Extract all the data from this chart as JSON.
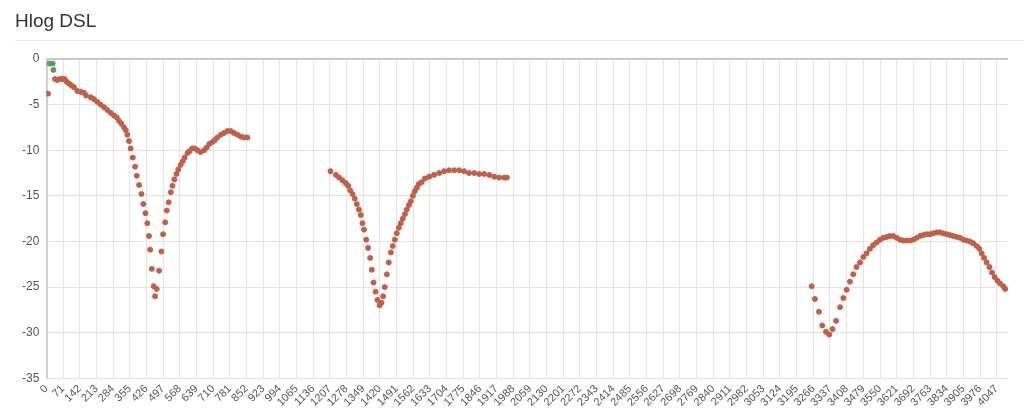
{
  "chart_data": {
    "type": "scatter",
    "title": "Hlog DSL",
    "marker": "circle",
    "grid": true,
    "xlim": [
      0,
      4095
    ],
    "xticks": [
      0,
      71,
      142,
      213,
      284,
      355,
      426,
      497,
      568,
      639,
      710,
      781,
      852,
      923,
      994,
      1065,
      1136,
      1207,
      1278,
      1349,
      1420,
      1491,
      1562,
      1633,
      1704,
      1775,
      1846,
      1917,
      1988,
      2059,
      2130,
      2201,
      2272,
      2343,
      2414,
      2485,
      2556,
      2627,
      2698,
      2769,
      2840,
      2911,
      2982,
      3053,
      3124,
      3195,
      3266,
      3337,
      3408,
      3479,
      3550,
      3621,
      3692,
      3763,
      3834,
      3905,
      3976,
      4047
    ],
    "ylim": [
      -35,
      0
    ],
    "yticks": [
      0,
      -5,
      -10,
      -15,
      -20,
      -25,
      -30,
      -35
    ],
    "series": [
      {
        "color": "#5c9a68",
        "x": [
          14,
          27,
          30
        ],
        "values": [
          -0.5,
          -0.5,
          -1.2
        ]
      },
      {
        "color": "#c0604a",
        "x": [
          7,
          37,
          47,
          58,
          68,
          78,
          87,
          97,
          107,
          118,
          132,
          146,
          160,
          169,
          189,
          203,
          217,
          231,
          246,
          260,
          274,
          288,
          300,
          310,
          320,
          331,
          338,
          345,
          352,
          359,
          368,
          378,
          385,
          395,
          405,
          413,
          422,
          430,
          437,
          442,
          449,
          457,
          463,
          470,
          480,
          490,
          497,
          506,
          513,
          521,
          530,
          537,
          545,
          554,
          562,
          572,
          581,
          589,
          601,
          609,
          621,
          632,
          643,
          657,
          672,
          683,
          694,
          707,
          717,
          728,
          743,
          757,
          771,
          785,
          799,
          814,
          828,
          842,
          856,
          1210,
          1233,
          1247,
          1261,
          1275,
          1285,
          1294,
          1304,
          1313,
          1322,
          1331,
          1339,
          1346,
          1353,
          1362,
          1370,
          1379,
          1386,
          1393,
          1402,
          1410,
          1419,
          1427,
          1434,
          1441,
          1450,
          1458,
          1467,
          1475,
          1484,
          1492,
          1501,
          1509,
          1518,
          1527,
          1535,
          1544,
          1552,
          1561,
          1569,
          1578,
          1586,
          1598,
          1612,
          1630,
          1651,
          1673,
          1694,
          1715,
          1737,
          1758,
          1779,
          1800,
          1822,
          1843,
          1864,
          1886,
          1907,
          1928,
          1950,
          1961,
          3259,
          3273,
          3290,
          3304,
          3320,
          3334,
          3348,
          3363,
          3380,
          3394,
          3408,
          3422,
          3436,
          3450,
          3465,
          3479,
          3493,
          3507,
          3521,
          3536,
          3550,
          3564,
          3578,
          3592,
          3606,
          3621,
          3635,
          3649,
          3663,
          3677,
          3692,
          3706,
          3720,
          3734,
          3748,
          3763,
          3777,
          3791,
          3805,
          3819,
          3834,
          3848,
          3862,
          3876,
          3891,
          3905,
          3919,
          3933,
          3947,
          3962,
          3973,
          3983,
          3993,
          4004,
          4016,
          4027,
          4038,
          4050,
          4061,
          4075,
          4083
        ],
        "values": [
          -3.8,
          -2.2,
          -2.3,
          -2.2,
          -2.2,
          -2.2,
          -2.5,
          -2.7,
          -2.9,
          -3.1,
          -3.5,
          -3.6,
          -3.7,
          -4.0,
          -4.2,
          -4.4,
          -4.7,
          -5.0,
          -5.3,
          -5.6,
          -5.9,
          -6.2,
          -6.4,
          -6.8,
          -7.1,
          -7.5,
          -7.8,
          -8.3,
          -9.0,
          -9.8,
          -10.8,
          -11.8,
          -12.8,
          -13.8,
          -14.8,
          -15.9,
          -16.9,
          -18.0,
          -19.4,
          -20.9,
          -23.0,
          -24.9,
          -26.0,
          -25.2,
          -23.2,
          -21.1,
          -19.2,
          -17.9,
          -16.6,
          -15.7,
          -14.6,
          -13.9,
          -13.2,
          -12.6,
          -12.1,
          -11.6,
          -11.2,
          -10.8,
          -10.3,
          -10.1,
          -9.8,
          -9.8,
          -10.0,
          -10.2,
          -10.0,
          -9.7,
          -9.3,
          -9.1,
          -8.9,
          -8.6,
          -8.3,
          -8.1,
          -7.9,
          -7.9,
          -8.1,
          -8.3,
          -8.5,
          -8.6,
          -8.6,
          -12.3,
          -12.7,
          -13.0,
          -13.3,
          -13.6,
          -13.9,
          -14.4,
          -14.8,
          -15.3,
          -15.9,
          -16.5,
          -17.1,
          -18.0,
          -18.7,
          -19.8,
          -20.7,
          -21.8,
          -23.1,
          -24.5,
          -25.5,
          -26.4,
          -27.0,
          -26.7,
          -26.0,
          -25.0,
          -23.6,
          -22.3,
          -21.2,
          -20.5,
          -19.8,
          -19.1,
          -18.5,
          -18.0,
          -17.5,
          -17.0,
          -16.5,
          -16.0,
          -15.6,
          -15.0,
          -14.5,
          -14.1,
          -13.7,
          -13.5,
          -13.1,
          -12.9,
          -12.7,
          -12.5,
          -12.3,
          -12.2,
          -12.2,
          -12.2,
          -12.3,
          -12.5,
          -12.5,
          -12.6,
          -12.6,
          -12.7,
          -12.9,
          -13.0,
          -13.0,
          -13.0,
          -24.9,
          -26.3,
          -27.7,
          -29.2,
          -29.9,
          -30.2,
          -29.6,
          -28.7,
          -27.2,
          -26.2,
          -25.3,
          -24.4,
          -23.6,
          -22.8,
          -22.3,
          -21.7,
          -21.3,
          -20.8,
          -20.4,
          -20.1,
          -19.8,
          -19.6,
          -19.5,
          -19.4,
          -19.4,
          -19.6,
          -19.8,
          -19.9,
          -19.9,
          -19.9,
          -19.8,
          -19.6,
          -19.4,
          -19.3,
          -19.2,
          -19.2,
          -19.1,
          -19.0,
          -19.0,
          -19.1,
          -19.2,
          -19.3,
          -19.4,
          -19.5,
          -19.6,
          -19.8,
          -19.9,
          -20.0,
          -20.2,
          -20.5,
          -20.8,
          -21.3,
          -21.8,
          -22.3,
          -22.8,
          -23.4,
          -23.9,
          -24.3,
          -24.6,
          -24.9,
          -25.2
        ]
      }
    ]
  }
}
